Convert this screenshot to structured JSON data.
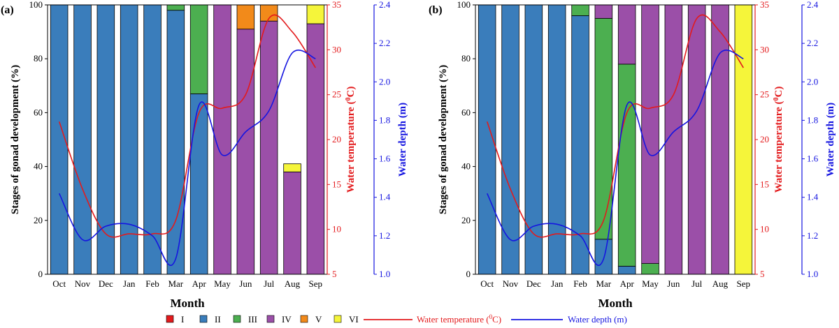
{
  "chart_data": [
    {
      "type": "bar",
      "panel_label": "(a)",
      "categories": [
        "Oct",
        "Nov",
        "Dec",
        "Jan",
        "Feb",
        "Mar",
        "Apr",
        "May",
        "Jun",
        "Jul",
        "Aug",
        "Sep"
      ],
      "series": [
        {
          "name": "I",
          "values": [
            0,
            0,
            0,
            0,
            0,
            0,
            0,
            0,
            0,
            0,
            0,
            0
          ]
        },
        {
          "name": "II",
          "values": [
            100,
            100,
            100,
            100,
            100,
            98,
            67,
            0,
            0,
            0,
            0,
            0
          ]
        },
        {
          "name": "III",
          "values": [
            0,
            0,
            0,
            0,
            0,
            2,
            33,
            0,
            0,
            0,
            0,
            0
          ]
        },
        {
          "name": "IV",
          "values": [
            0,
            0,
            0,
            0,
            0,
            0,
            0,
            100,
            91,
            94,
            38,
            93
          ]
        },
        {
          "name": "V",
          "values": [
            0,
            0,
            0,
            0,
            0,
            0,
            0,
            0,
            9,
            6,
            0,
            0
          ]
        },
        {
          "name": "VI",
          "values": [
            0,
            0,
            0,
            0,
            0,
            0,
            0,
            0,
            0,
            0,
            3,
            7
          ]
        }
      ],
      "stage_values_offset_note": "",
      "xlabel": "Month",
      "ylabel": "Stages of gonad development (%)",
      "ylim": [
        0,
        100
      ],
      "y_ticks": [
        "0",
        "20",
        "40",
        "60",
        "80",
        "100"
      ],
      "temperature": {
        "label": "Water temperature (",
        "label_sup": "0",
        "label_end": "C)",
        "ylim": [
          5,
          35
        ],
        "ticks": [
          "5",
          "10",
          "15",
          "20",
          "25",
          "30",
          "35"
        ],
        "values": [
          22.0,
          14.5,
          9.5,
          9.5,
          9.5,
          11.0,
          23.0,
          23.5,
          25.0,
          33.5,
          32.0,
          28.0
        ]
      },
      "depth": {
        "label": "Water depth (m)",
        "ylim": [
          1.0,
          2.4
        ],
        "ticks": [
          "1.0",
          "1.2",
          "1.4",
          "1.6",
          "1.8",
          "2.0",
          "2.2",
          "2.4"
        ],
        "values": [
          1.42,
          1.18,
          1.25,
          1.26,
          1.2,
          1.08,
          1.88,
          1.62,
          1.74,
          1.85,
          2.15,
          2.12
        ]
      }
    },
    {
      "type": "bar",
      "panel_label": "(b)",
      "categories": [
        "Oct",
        "Nov",
        "Dec",
        "Jan",
        "Feb",
        "Mar",
        "Apr",
        "May",
        "Jun",
        "Jul",
        "Aug",
        "Sep"
      ],
      "series": [
        {
          "name": "I",
          "values": [
            0,
            0,
            0,
            0,
            0,
            0,
            0,
            0,
            0,
            0,
            0,
            0
          ]
        },
        {
          "name": "II",
          "values": [
            100,
            100,
            100,
            100,
            96,
            13,
            3,
            0,
            0,
            0,
            0,
            0
          ]
        },
        {
          "name": "III",
          "values": [
            0,
            0,
            0,
            0,
            4,
            82,
            75,
            4,
            0,
            0,
            0,
            0
          ]
        },
        {
          "name": "IV",
          "values": [
            0,
            0,
            0,
            0,
            0,
            5,
            22,
            96,
            100,
            100,
            100,
            0
          ]
        },
        {
          "name": "V",
          "values": [
            0,
            0,
            0,
            0,
            0,
            0,
            0,
            0,
            0,
            0,
            0,
            0
          ]
        },
        {
          "name": "VI",
          "values": [
            0,
            0,
            0,
            0,
            0,
            0,
            0,
            0,
            0,
            0,
            0,
            100
          ]
        }
      ],
      "xlabel": "Month",
      "ylabel": "Stages of gonad development (%)",
      "ylim": [
        0,
        100
      ],
      "y_ticks": [
        "0",
        "20",
        "40",
        "60",
        "80",
        "100"
      ],
      "temperature": {
        "label": "Water temperature (",
        "label_sup": "0",
        "label_end": "C)",
        "ylim": [
          5,
          35
        ],
        "ticks": [
          "5",
          "10",
          "15",
          "20",
          "25",
          "30",
          "35"
        ],
        "values": [
          22.0,
          14.5,
          9.5,
          9.5,
          9.5,
          11.0,
          23.0,
          23.5,
          25.0,
          33.5,
          32.0,
          28.0
        ]
      },
      "depth": {
        "label": "Water depth (m)",
        "ylim": [
          1.0,
          2.4
        ],
        "ticks": [
          "1.0",
          "1.2",
          "1.4",
          "1.6",
          "1.8",
          "2.0",
          "2.2",
          "2.4"
        ],
        "values": [
          1.42,
          1.18,
          1.25,
          1.26,
          1.2,
          1.08,
          1.88,
          1.62,
          1.74,
          1.85,
          2.15,
          2.12
        ]
      }
    }
  ],
  "legend": {
    "stages": [
      {
        "name": "I",
        "color": "#e31a1c"
      },
      {
        "name": "II",
        "color": "#3a7dbb"
      },
      {
        "name": "III",
        "color": "#4caf50"
      },
      {
        "name": "IV",
        "color": "#9b4fa8"
      },
      {
        "name": "V",
        "color": "#f28a1a"
      },
      {
        "name": "VI",
        "color": "#f5f53a"
      }
    ],
    "temp_label": "Water temperature (",
    "temp_sup": "0",
    "temp_end": "C)",
    "temp_color": "#e31a1c",
    "depth_label": "Water depth (m)",
    "depth_color": "#1515e0"
  }
}
